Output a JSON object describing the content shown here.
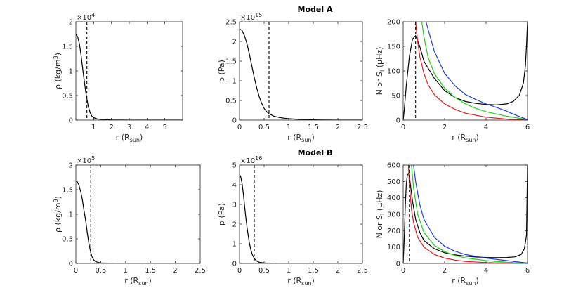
{
  "chart_data": [
    {
      "type": "line",
      "title": "",
      "sci_label": "×10",
      "sci_exp": "4",
      "xlim": [
        0,
        6
      ],
      "ylim": [
        0,
        2
      ],
      "xticks": [
        0,
        1,
        2,
        3,
        4,
        5
      ],
      "xtick_labels": [
        "1",
        "2",
        "3",
        "4",
        "5"
      ],
      "xtick_label_values": [
        1,
        2,
        3,
        4,
        5
      ],
      "yticks": [
        0,
        0.5,
        1,
        1.5,
        2
      ],
      "ytick_labels": [
        "0",
        "0.5",
        "1",
        "1.5",
        "2"
      ],
      "xlabel": "r (R",
      "xlabel_sub": "sun",
      "xlabel_tail": ")",
      "ylabel": "ρ (kg/m",
      "ylabel_sup": "3",
      "ylabel_tail": ")",
      "vline_x": 0.62,
      "series": [
        {
          "name": "density",
          "color": "#000000",
          "x": [
            0,
            0.1,
            0.2,
            0.3,
            0.4,
            0.5,
            0.6,
            0.7,
            0.8,
            0.9,
            1.0,
            1.2,
            1.4,
            1.6,
            2.0,
            3.0,
            4.0,
            5.0,
            6.0
          ],
          "y": [
            1.74,
            1.7,
            1.55,
            1.3,
            1.0,
            0.72,
            0.47,
            0.28,
            0.15,
            0.08,
            0.05,
            0.025,
            0.015,
            0.01,
            0.005,
            0.0,
            0.0,
            0.0,
            0.0
          ]
        }
      ]
    },
    {
      "type": "line",
      "title": "Model A",
      "sci_label": "×10",
      "sci_exp": "15",
      "xlim": [
        0,
        2.5
      ],
      "ylim": [
        0,
        2.5
      ],
      "xticks": [
        0,
        0.5,
        1,
        1.5,
        2,
        2.5
      ],
      "xtick_labels": [
        "0",
        "0.5",
        "1",
        "1.5",
        "2",
        "2.5"
      ],
      "xtick_label_values": [
        0,
        0.5,
        1,
        1.5,
        2,
        2.5
      ],
      "yticks": [
        0,
        0.5,
        1,
        1.5,
        2,
        2.5
      ],
      "ytick_labels": [
        "0",
        "0.5",
        "1",
        "1.5",
        "2",
        "2.5"
      ],
      "xlabel": "r (R",
      "xlabel_sub": "sun",
      "xlabel_tail": ")",
      "ylabel": "p (Pa)",
      "ylabel_sup": "",
      "ylabel_tail": "",
      "vline_x": 0.6,
      "series": [
        {
          "name": "pressure",
          "color": "#000000",
          "x": [
            0,
            0.05,
            0.1,
            0.15,
            0.2,
            0.25,
            0.3,
            0.35,
            0.4,
            0.45,
            0.5,
            0.55,
            0.6,
            0.7,
            0.8,
            0.9,
            1.0,
            1.2,
            1.4,
            1.6,
            2.0,
            2.5
          ],
          "y": [
            2.32,
            2.28,
            2.15,
            1.95,
            1.68,
            1.38,
            1.08,
            0.82,
            0.6,
            0.43,
            0.3,
            0.22,
            0.16,
            0.1,
            0.07,
            0.05,
            0.035,
            0.02,
            0.01,
            0.005,
            0.0,
            0.0
          ]
        }
      ]
    },
    {
      "type": "line",
      "title": "",
      "sci_label": "",
      "sci_exp": "",
      "xlim": [
        0,
        6
      ],
      "ylim": [
        0,
        200
      ],
      "xticks": [
        0,
        2,
        4,
        6
      ],
      "xtick_labels": [
        "0",
        "2",
        "4",
        "6"
      ],
      "xtick_label_values": [
        0,
        2,
        4,
        6
      ],
      "yticks": [
        0,
        50,
        100,
        150,
        200
      ],
      "ytick_labels": [
        "0",
        "50",
        "100",
        "150",
        "200"
      ],
      "xlabel": "r (R",
      "xlabel_sub": "sun",
      "xlabel_tail": ")",
      "ylabel": "N or S",
      "ylabel_sub": "l",
      "ylabel_tail": " (μHz)",
      "vline_x": 0.6,
      "series": [
        {
          "name": "N",
          "color": "#000000",
          "x": [
            0,
            0.05,
            0.15,
            0.3,
            0.45,
            0.6,
            0.8,
            1.0,
            1.5,
            2.0,
            2.5,
            3.0,
            3.5,
            4.0,
            4.5,
            5.0,
            5.3,
            5.6,
            5.8,
            5.9,
            5.95,
            6.0
          ],
          "y": [
            0,
            20,
            70,
            130,
            165,
            172,
            150,
            120,
            85,
            60,
            46,
            38,
            34,
            32,
            31,
            33,
            38,
            50,
            75,
            110,
            150,
            200
          ]
        },
        {
          "name": "S_l red",
          "color": "#e41a1c",
          "x": [
            0.6,
            0.7,
            0.8,
            1.0,
            1.2,
            1.5,
            2.0,
            2.5,
            3.0,
            4.0,
            5.0,
            6.0
          ],
          "y": [
            200,
            160,
            130,
            95,
            72,
            52,
            33,
            22,
            14,
            6,
            2,
            0
          ]
        },
        {
          "name": "S_l green",
          "color": "#1fcf1f",
          "x": [
            0.9,
            1.0,
            1.2,
            1.5,
            2.0,
            2.5,
            3.0,
            3.5,
            4.0,
            5.0,
            6.0
          ],
          "y": [
            200,
            170,
            128,
            95,
            65,
            46,
            33,
            24,
            17,
            8,
            1
          ]
        },
        {
          "name": "S_l blue",
          "color": "#1f3fe0",
          "x": [
            1.1,
            1.2,
            1.5,
            2.0,
            2.5,
            3.0,
            3.5,
            4.0,
            4.5,
            5.0,
            5.5,
            6.0
          ],
          "y": [
            200,
            185,
            140,
            95,
            70,
            52,
            42,
            33,
            26,
            18,
            9,
            1
          ]
        }
      ]
    },
    {
      "type": "line",
      "title": "",
      "sci_label": "×10",
      "sci_exp": "5",
      "xlim": [
        0,
        2.5
      ],
      "ylim": [
        0,
        2
      ],
      "xticks": [
        0,
        0.5,
        1,
        1.5,
        2,
        2.5
      ],
      "xtick_labels": [
        "0",
        "0.5",
        "1",
        "1.5",
        "2",
        "2.5"
      ],
      "xtick_label_values": [
        0,
        0.5,
        1,
        1.5,
        2,
        2.5
      ],
      "yticks": [
        0,
        0.5,
        1,
        1.5,
        2
      ],
      "ytick_labels": [
        "0",
        "0.5",
        "1",
        "1.5",
        "2"
      ],
      "xlabel": "r (R",
      "xlabel_sub": "sun",
      "xlabel_tail": ")",
      "ylabel": "ρ (kg/m",
      "ylabel_sup": "3",
      "ylabel_tail": ")",
      "vline_x": 0.3,
      "series": [
        {
          "name": "density",
          "color": "#000000",
          "x": [
            0,
            0.03,
            0.06,
            0.1,
            0.13,
            0.16,
            0.2,
            0.23,
            0.26,
            0.3,
            0.33,
            0.36,
            0.4,
            0.45,
            0.5,
            0.6,
            0.8,
            1.0,
            1.5,
            2.0,
            2.5
          ],
          "y": [
            1.68,
            1.66,
            1.6,
            1.45,
            1.3,
            1.1,
            0.85,
            0.62,
            0.42,
            0.22,
            0.12,
            0.07,
            0.035,
            0.02,
            0.01,
            0.005,
            0.0,
            0.0,
            0.0,
            0.0,
            0.0
          ]
        }
      ]
    },
    {
      "type": "line",
      "title": "Model B",
      "sci_label": "×10",
      "sci_exp": "16",
      "xlim": [
        0,
        2.5
      ],
      "ylim": [
        0,
        5
      ],
      "xticks": [
        0,
        0.5,
        1,
        1.5,
        2,
        2.5
      ],
      "xtick_labels": [
        "0",
        "0.5",
        "1",
        "1.5",
        "2",
        "2.5"
      ],
      "xtick_label_values": [
        0,
        0.5,
        1,
        1.5,
        2,
        2.5
      ],
      "yticks": [
        0,
        1,
        2,
        3,
        4,
        5
      ],
      "ytick_labels": [
        "0",
        "1",
        "2",
        "3",
        "4",
        "5"
      ],
      "xlabel": "r (R",
      "xlabel_sub": "sun",
      "xlabel_tail": ")",
      "ylabel": "p (Pa)",
      "ylabel_sup": "",
      "ylabel_tail": "",
      "vline_x": 0.3,
      "series": [
        {
          "name": "pressure",
          "color": "#000000",
          "x": [
            0,
            0.02,
            0.05,
            0.08,
            0.1,
            0.13,
            0.16,
            0.2,
            0.23,
            0.26,
            0.3,
            0.35,
            0.4,
            0.5,
            0.6,
            0.8,
            1.0,
            1.5,
            2.0,
            2.5
          ],
          "y": [
            4.5,
            4.45,
            4.1,
            3.5,
            3.0,
            2.3,
            1.7,
            1.05,
            0.7,
            0.45,
            0.25,
            0.12,
            0.06,
            0.02,
            0.01,
            0.0,
            0.0,
            0.0,
            0.0,
            0.0
          ]
        }
      ]
    },
    {
      "type": "line",
      "title": "",
      "sci_label": "",
      "sci_exp": "",
      "xlim": [
        0,
        6
      ],
      "ylim": [
        0,
        600
      ],
      "xticks": [
        0,
        2,
        4,
        6
      ],
      "xtick_labels": [
        "0",
        "2",
        "4",
        "6"
      ],
      "xtick_label_values": [
        0,
        2,
        4,
        6
      ],
      "yticks": [
        0,
        100,
        200,
        300,
        400,
        500,
        600
      ],
      "ytick_labels": [
        "0",
        "100",
        "200",
        "300",
        "400",
        "500",
        "600"
      ],
      "xlabel": "r (R",
      "xlabel_sub": "sun",
      "xlabel_tail": ")",
      "ylabel": "N or S",
      "ylabel_sub": "l",
      "ylabel_tail": " (μHz)",
      "vline_x": 0.3,
      "series": [
        {
          "name": "N",
          "color": "#000000",
          "x": [
            0,
            0.05,
            0.1,
            0.15,
            0.2,
            0.25,
            0.3,
            0.35,
            0.45,
            0.6,
            0.8,
            1.0,
            1.5,
            2.0,
            2.5,
            3.0,
            3.5,
            4.0,
            4.5,
            5.0,
            5.4,
            5.7,
            5.85,
            5.95,
            6.0
          ],
          "y": [
            0,
            150,
            350,
            480,
            540,
            550,
            530,
            480,
            380,
            270,
            190,
            140,
            90,
            65,
            52,
            44,
            39,
            36,
            35,
            36,
            40,
            55,
            90,
            170,
            600
          ]
        },
        {
          "name": "S_l red",
          "color": "#e41a1c",
          "x": [
            0.25,
            0.3,
            0.4,
            0.5,
            0.7,
            1.0,
            1.5,
            2.0,
            2.5,
            3.0,
            4.0,
            5.0,
            6.0
          ],
          "y": [
            600,
            480,
            330,
            250,
            160,
            100,
            55,
            32,
            20,
            12,
            5,
            2,
            0
          ]
        },
        {
          "name": "S_l green",
          "color": "#1fcf1f",
          "x": [
            0.4,
            0.5,
            0.7,
            1.0,
            1.5,
            2.0,
            2.5,
            3.0,
            4.0,
            5.0,
            6.0
          ],
          "y": [
            600,
            460,
            300,
            190,
            110,
            72,
            48,
            34,
            17,
            7,
            1
          ]
        },
        {
          "name": "S_l blue",
          "color": "#1f3fe0",
          "x": [
            0.5,
            0.6,
            0.8,
            1.0,
            1.5,
            2.0,
            2.5,
            3.0,
            4.0,
            5.0,
            6.0
          ],
          "y": [
            600,
            500,
            360,
            270,
            160,
            105,
            74,
            54,
            32,
            17,
            2
          ]
        }
      ]
    }
  ]
}
